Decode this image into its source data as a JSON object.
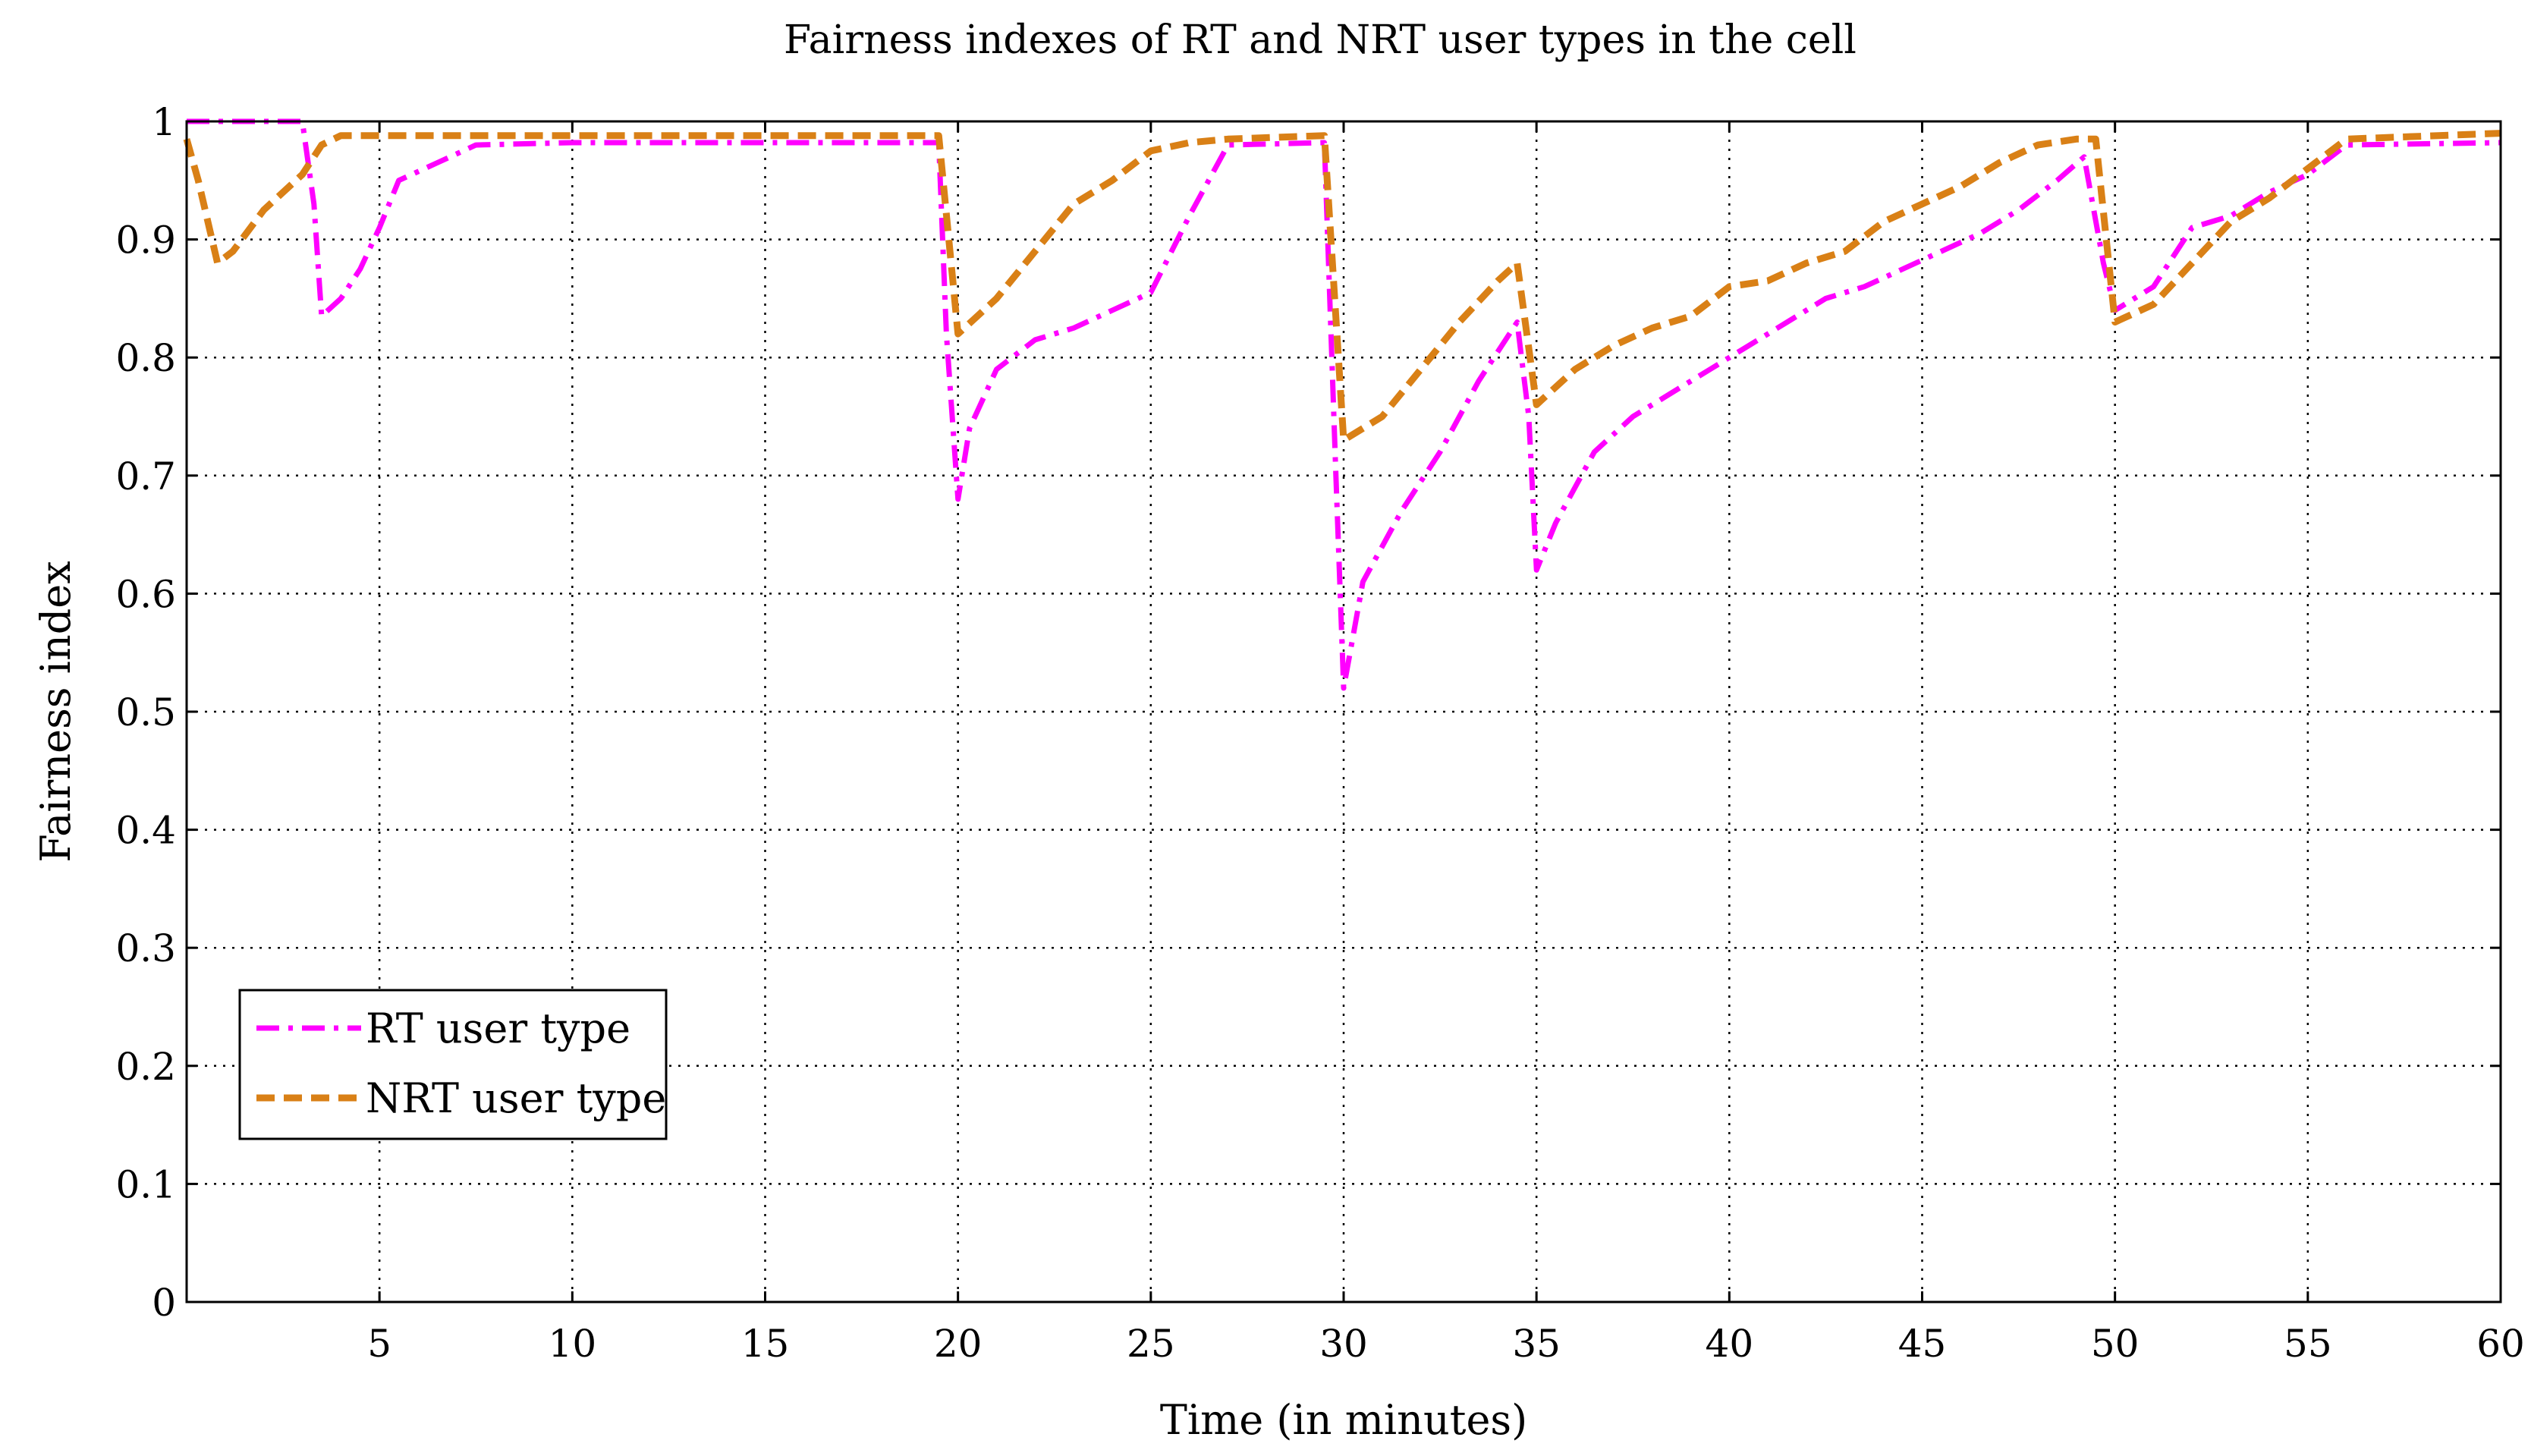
{
  "chart_data": {
    "type": "line",
    "title": "Fairness indexes of RT and NRT user types in the cell",
    "xlabel": "Time (in minutes)",
    "ylabel": "Fairness index",
    "xlim": [
      0,
      60
    ],
    "ylim": [
      0,
      1
    ],
    "x_ticks": [
      5,
      10,
      15,
      20,
      25,
      30,
      35,
      40,
      45,
      50,
      55,
      60
    ],
    "y_ticks": [
      0,
      0.1,
      0.2,
      0.3,
      0.4,
      0.5,
      0.6,
      0.7,
      0.8,
      0.9,
      1
    ],
    "grid": true,
    "legend_position": "bottom-left",
    "series": [
      {
        "name": "RT user type",
        "color": "#ff00ff",
        "style": "dash-dot",
        "points": [
          [
            0,
            1.0
          ],
          [
            3.0,
            1.0
          ],
          [
            3.3,
            0.93
          ],
          [
            3.5,
            0.835
          ],
          [
            4.0,
            0.85
          ],
          [
            4.5,
            0.875
          ],
          [
            5.0,
            0.91
          ],
          [
            5.5,
            0.95
          ],
          [
            6.5,
            0.965
          ],
          [
            7.5,
            0.98
          ],
          [
            10,
            0.982
          ],
          [
            19.5,
            0.982
          ],
          [
            19.7,
            0.82
          ],
          [
            20.0,
            0.68
          ],
          [
            20.3,
            0.74
          ],
          [
            21.0,
            0.79
          ],
          [
            22.0,
            0.815
          ],
          [
            23.0,
            0.825
          ],
          [
            24.0,
            0.84
          ],
          [
            25.0,
            0.855
          ],
          [
            26.0,
            0.92
          ],
          [
            27.0,
            0.98
          ],
          [
            29.5,
            0.982
          ],
          [
            29.8,
            0.7
          ],
          [
            30.0,
            0.52
          ],
          [
            30.5,
            0.61
          ],
          [
            31.5,
            0.67
          ],
          [
            32.5,
            0.72
          ],
          [
            33.5,
            0.78
          ],
          [
            34.5,
            0.83
          ],
          [
            34.8,
            0.75
          ],
          [
            35.0,
            0.62
          ],
          [
            35.5,
            0.66
          ],
          [
            36.5,
            0.72
          ],
          [
            37.5,
            0.75
          ],
          [
            38.5,
            0.77
          ],
          [
            39.5,
            0.79
          ],
          [
            40.5,
            0.81
          ],
          [
            41.5,
            0.83
          ],
          [
            42.5,
            0.85
          ],
          [
            43.5,
            0.86
          ],
          [
            44.5,
            0.875
          ],
          [
            45.5,
            0.89
          ],
          [
            46.5,
            0.905
          ],
          [
            47.5,
            0.925
          ],
          [
            48.5,
            0.95
          ],
          [
            49.2,
            0.97
          ],
          [
            49.7,
            0.88
          ],
          [
            50.0,
            0.84
          ],
          [
            51.0,
            0.86
          ],
          [
            52.0,
            0.91
          ],
          [
            53.0,
            0.92
          ],
          [
            54.0,
            0.94
          ],
          [
            55.0,
            0.955
          ],
          [
            56.0,
            0.98
          ],
          [
            60.0,
            0.982
          ]
        ]
      },
      {
        "name": "NRT user type",
        "color": "#d98016",
        "style": "dashed",
        "points": [
          [
            0,
            0.985
          ],
          [
            0.3,
            0.95
          ],
          [
            0.8,
            0.88
          ],
          [
            1.2,
            0.89
          ],
          [
            2.0,
            0.925
          ],
          [
            3.0,
            0.955
          ],
          [
            3.5,
            0.98
          ],
          [
            4.0,
            0.988
          ],
          [
            10,
            0.988
          ],
          [
            19.5,
            0.988
          ],
          [
            20.0,
            0.82
          ],
          [
            21.0,
            0.85
          ],
          [
            22.0,
            0.89
          ],
          [
            23.0,
            0.93
          ],
          [
            24.0,
            0.95
          ],
          [
            25.0,
            0.975
          ],
          [
            26.0,
            0.982
          ],
          [
            27.0,
            0.985
          ],
          [
            29.5,
            0.988
          ],
          [
            30.0,
            0.73
          ],
          [
            31.0,
            0.75
          ],
          [
            32.0,
            0.79
          ],
          [
            33.0,
            0.83
          ],
          [
            34.0,
            0.865
          ],
          [
            34.5,
            0.88
          ],
          [
            35.0,
            0.76
          ],
          [
            36.0,
            0.79
          ],
          [
            37.0,
            0.81
          ],
          [
            38.0,
            0.825
          ],
          [
            39.0,
            0.835
          ],
          [
            40.0,
            0.86
          ],
          [
            41.0,
            0.865
          ],
          [
            42.0,
            0.88
          ],
          [
            43.0,
            0.89
          ],
          [
            44.0,
            0.915
          ],
          [
            45.0,
            0.93
          ],
          [
            46.0,
            0.945
          ],
          [
            47.0,
            0.965
          ],
          [
            48.0,
            0.98
          ],
          [
            49.0,
            0.985
          ],
          [
            49.5,
            0.985
          ],
          [
            50.0,
            0.83
          ],
          [
            51.0,
            0.845
          ],
          [
            52.0,
            0.88
          ],
          [
            53.0,
            0.915
          ],
          [
            54.0,
            0.935
          ],
          [
            55.0,
            0.96
          ],
          [
            56.0,
            0.985
          ],
          [
            60.0,
            0.99
          ]
        ]
      }
    ]
  }
}
